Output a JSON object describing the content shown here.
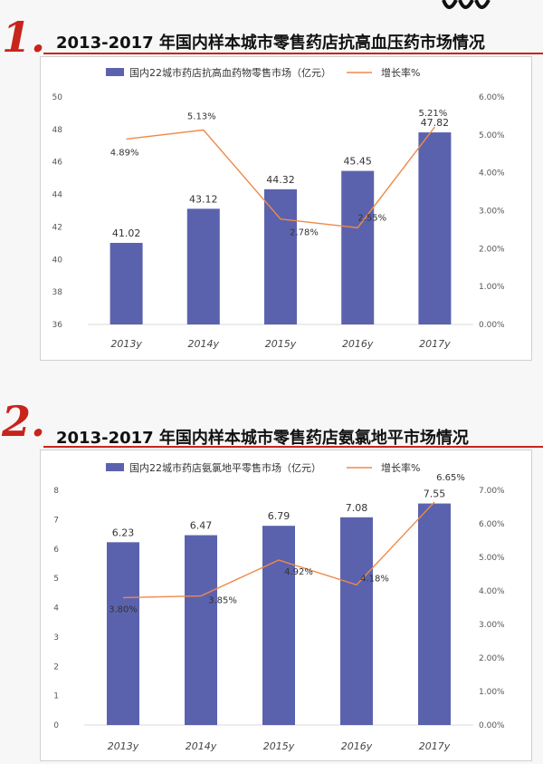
{
  "sections": [
    {
      "badge": "1.",
      "heading": "2013-2017 年国内样本城市零售药店抗高血压药市场情况"
    },
    {
      "badge": "2.",
      "heading": "2013-2017 年国内样本城市零售药店氨氯地平市场情况"
    }
  ],
  "chart_data": [
    {
      "type": "bar",
      "title": "",
      "categories": [
        "2013y",
        "2014y",
        "2015y",
        "2016y",
        "2017y"
      ],
      "series": [
        {
          "name": "国内22城市药店抗高血药物零售市场（亿元）",
          "kind": "bar",
          "axis": "left",
          "values": [
            41.02,
            43.12,
            44.32,
            45.45,
            47.82
          ],
          "labels": [
            "41.02",
            "43.12",
            "44.32",
            "45.45",
            "47.82"
          ]
        },
        {
          "name": "增长率%",
          "kind": "line",
          "axis": "right",
          "values": [
            4.89,
            5.13,
            2.78,
            2.55,
            5.21
          ],
          "labels": [
            "4.89%",
            "5.13%",
            "2.78%",
            "2.55%",
            "5.21%"
          ]
        }
      ],
      "ylim": [
        36,
        50
      ],
      "yticks": [
        "36",
        "38",
        "40",
        "42",
        "44",
        "46",
        "48",
        "50"
      ],
      "y2lim": [
        0,
        6
      ],
      "y2ticks": [
        "0.00%",
        "1.00%",
        "2.00%",
        "3.00%",
        "4.00%",
        "5.00%",
        "6.00%"
      ],
      "legend": "top-center",
      "grid": false,
      "colors": {
        "bar": "#5b62ad",
        "line": "#ee8a4a"
      }
    },
    {
      "type": "bar",
      "title": "",
      "categories": [
        "2013y",
        "2014y",
        "2015y",
        "2016y",
        "2017y"
      ],
      "series": [
        {
          "name": "国内22城市药店氨氯地平零售市场（亿元）",
          "kind": "bar",
          "axis": "left",
          "values": [
            6.23,
            6.47,
            6.79,
            7.08,
            7.55
          ],
          "labels": [
            "6.23",
            "6.47",
            "6.79",
            "7.08",
            "7.55"
          ]
        },
        {
          "name": "增长率%",
          "kind": "line",
          "axis": "right",
          "values": [
            3.8,
            3.85,
            4.92,
            4.18,
            6.65
          ],
          "labels": [
            "3.80%",
            "3.85%",
            "4.92%",
            "4.18%",
            "6.65%"
          ]
        }
      ],
      "ylim": [
        0,
        8
      ],
      "yticks": [
        "0",
        "1",
        "2",
        "3",
        "4",
        "5",
        "6",
        "7",
        "8"
      ],
      "y2lim": [
        0,
        7
      ],
      "y2ticks": [
        "0.00%",
        "1.00%",
        "2.00%",
        "3.00%",
        "4.00%",
        "5.00%",
        "6.00%",
        "7.00%"
      ],
      "legend": "top-center",
      "grid": false,
      "colors": {
        "bar": "#5b62ad",
        "line": "#ee8a4a"
      }
    }
  ]
}
